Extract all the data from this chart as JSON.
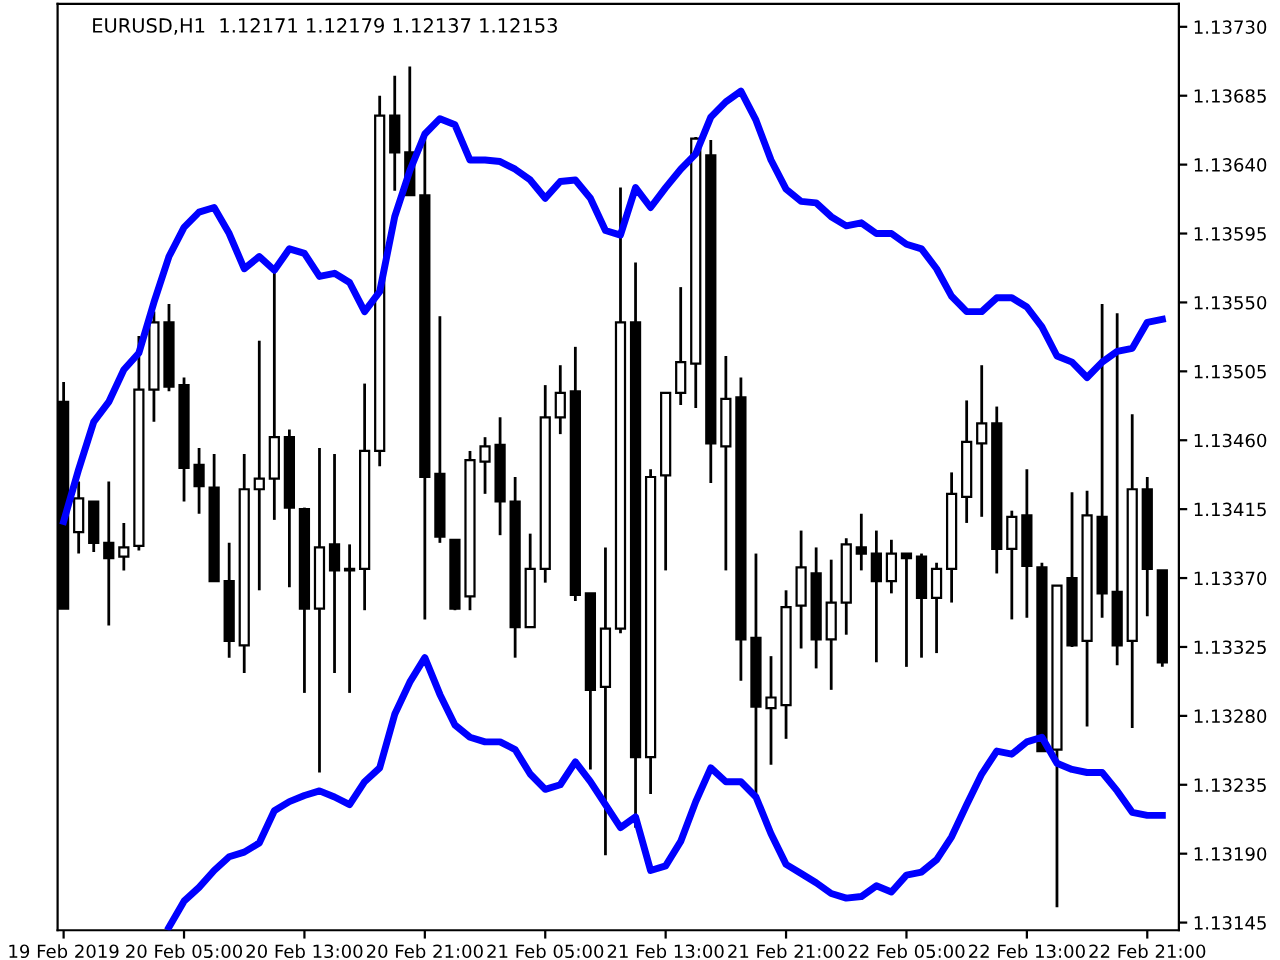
{
  "chart_data": {
    "type": "candlestick",
    "title": "EURUSD,H1  1.12171 1.12179 1.12137 1.12153",
    "categories": [
      "19 Feb 2019",
      null,
      null,
      null,
      null,
      null,
      null,
      null,
      "20 Feb 05:00",
      null,
      null,
      null,
      null,
      null,
      null,
      null,
      "20 Feb 13:00",
      null,
      null,
      null,
      null,
      null,
      null,
      null,
      "20 Feb 21:00",
      null,
      null,
      null,
      null,
      null,
      null,
      null,
      "21 Feb 05:00",
      null,
      null,
      null,
      null,
      null,
      null,
      null,
      "21 Feb 13:00",
      null,
      null,
      null,
      null,
      null,
      null,
      null,
      "21 Feb 21:00",
      null,
      null,
      null,
      null,
      null,
      null,
      null,
      "22 Feb 05:00",
      null,
      null,
      null,
      null,
      null,
      null,
      null,
      "22 Feb 13:00",
      null,
      null,
      null,
      null,
      null,
      null,
      null,
      "22 Feb 21:00",
      null
    ],
    "ohlc": [
      [
        1.13485,
        1.13498,
        1.1335,
        1.1335
      ],
      [
        1.134,
        1.13433,
        1.13386,
        1.13422
      ],
      [
        1.1342,
        1.1342,
        1.13387,
        1.13393
      ],
      [
        1.13393,
        1.13433,
        1.13339,
        1.13383
      ],
      [
        1.13384,
        1.13406,
        1.13375,
        1.1339
      ],
      [
        1.13391,
        1.13528,
        1.13388,
        1.13493
      ],
      [
        1.13493,
        1.13544,
        1.13472,
        1.13537
      ],
      [
        1.13537,
        1.13549,
        1.13492,
        1.13495
      ],
      [
        1.13496,
        1.13501,
        1.1342,
        1.13442
      ],
      [
        1.13444,
        1.13455,
        1.13412,
        1.1343
      ],
      [
        1.13429,
        1.13451,
        1.13368,
        1.13368
      ],
      [
        1.13368,
        1.13393,
        1.13318,
        1.13329
      ],
      [
        1.13326,
        1.13451,
        1.13308,
        1.13428
      ],
      [
        1.13428,
        1.13525,
        1.13362,
        1.13435
      ],
      [
        1.13435,
        1.13571,
        1.13408,
        1.13462
      ],
      [
        1.13462,
        1.13467,
        1.13364,
        1.13416
      ],
      [
        1.13415,
        1.13416,
        1.13295,
        1.1335
      ],
      [
        1.1335,
        1.13455,
        1.13243,
        1.1339
      ],
      [
        1.13392,
        1.13451,
        1.13308,
        1.13375
      ],
      [
        1.13376,
        1.13392,
        1.13295,
        1.13375
      ],
      [
        1.13376,
        1.13497,
        1.13349,
        1.13453
      ],
      [
        1.13453,
        1.13685,
        1.13443,
        1.13672
      ],
      [
        1.13672,
        1.13698,
        1.13623,
        1.13648
      ],
      [
        1.13648,
        1.13704,
        1.1362,
        1.1362
      ],
      [
        1.1362,
        1.13658,
        1.13343,
        1.13436
      ],
      [
        1.13438,
        1.13541,
        1.13393,
        1.13397
      ],
      [
        1.13395,
        1.13395,
        1.13349,
        1.1335
      ],
      [
        1.13358,
        1.13453,
        1.13349,
        1.13447
      ],
      [
        1.13446,
        1.13462,
        1.13425,
        1.13456
      ],
      [
        1.13457,
        1.13475,
        1.13398,
        1.1342
      ],
      [
        1.1342,
        1.13436,
        1.13318,
        1.13338
      ],
      [
        1.13338,
        1.13399,
        1.13338,
        1.13376
      ],
      [
        1.13376,
        1.13496,
        1.13367,
        1.13475
      ],
      [
        1.13475,
        1.13509,
        1.13464,
        1.13491
      ],
      [
        1.13492,
        1.13521,
        1.13355,
        1.13359
      ],
      [
        1.1336,
        1.1336,
        1.13245,
        1.13297
      ],
      [
        1.13299,
        1.1339,
        1.13189,
        1.13337
      ],
      [
        1.13337,
        1.13625,
        1.13334,
        1.13537
      ],
      [
        1.13537,
        1.13576,
        1.13207,
        1.13253
      ],
      [
        1.13253,
        1.13441,
        1.13229,
        1.13436
      ],
      [
        1.13437,
        1.13491,
        1.13375,
        1.13491
      ],
      [
        1.13491,
        1.1356,
        1.13483,
        1.13511
      ],
      [
        1.1351,
        1.13658,
        1.13481,
        1.13657
      ],
      [
        1.13646,
        1.13656,
        1.13432,
        1.13458
      ],
      [
        1.13456,
        1.13515,
        1.13375,
        1.13487
      ],
      [
        1.13488,
        1.13501,
        1.13303,
        1.1333
      ],
      [
        1.13331,
        1.13386,
        1.13228,
        1.13286
      ],
      [
        1.13285,
        1.13319,
        1.13248,
        1.13292
      ],
      [
        1.13287,
        1.13362,
        1.13265,
        1.13351
      ],
      [
        1.13352,
        1.13401,
        1.13324,
        1.13377
      ],
      [
        1.13373,
        1.1339,
        1.13311,
        1.1333
      ],
      [
        1.1333,
        1.13382,
        1.13297,
        1.13354
      ],
      [
        1.13354,
        1.13396,
        1.13333,
        1.13392
      ],
      [
        1.1339,
        1.13412,
        1.13375,
        1.13386
      ],
      [
        1.13386,
        1.13401,
        1.13315,
        1.13368
      ],
      [
        1.13368,
        1.13395,
        1.1336,
        1.13386
      ],
      [
        1.13386,
        1.13386,
        1.13312,
        1.13383
      ],
      [
        1.13384,
        1.13386,
        1.13318,
        1.13357
      ],
      [
        1.13357,
        1.1338,
        1.13321,
        1.13376
      ],
      [
        1.13376,
        1.13439,
        1.13354,
        1.13425
      ],
      [
        1.13423,
        1.13486,
        1.13406,
        1.13459
      ],
      [
        1.13458,
        1.13509,
        1.1341,
        1.13471
      ],
      [
        1.13471,
        1.13482,
        1.13373,
        1.13389
      ],
      [
        1.13389,
        1.13414,
        1.13343,
        1.1341
      ],
      [
        1.13411,
        1.13441,
        1.13344,
        1.13378
      ],
      [
        1.13377,
        1.1338,
        1.13257,
        1.13257
      ],
      [
        1.13258,
        1.13365,
        1.13155,
        1.13365
      ],
      [
        1.1337,
        1.13426,
        1.13325,
        1.13326
      ],
      [
        1.13329,
        1.13427,
        1.13273,
        1.13411
      ],
      [
        1.1341,
        1.13549,
        1.13344,
        1.1336
      ],
      [
        1.13361,
        1.13543,
        1.13313,
        1.13326
      ],
      [
        1.13329,
        1.13477,
        1.13272,
        1.13428
      ],
      [
        1.13428,
        1.13436,
        1.13345,
        1.13376
      ],
      [
        1.13375,
        1.13375,
        1.13312,
        1.13315
      ]
    ],
    "series": [
      {
        "type": "line",
        "color": "#0000ff",
        "values": [
          1.13407,
          1.13441,
          1.13472,
          1.13485,
          1.13506,
          1.13517,
          1.1355,
          1.1358,
          1.13599,
          1.13609,
          1.13612,
          1.13595,
          1.13572,
          1.1358,
          1.13571,
          1.13585,
          1.13582,
          1.13567,
          1.13569,
          1.13563,
          1.13544,
          1.13557,
          1.13606,
          1.13636,
          1.1366,
          1.1367,
          1.13666,
          1.13643,
          1.13643,
          1.13642,
          1.13637,
          1.1363,
          1.13618,
          1.13629,
          1.1363,
          1.13618,
          1.13597,
          1.13594,
          1.13625,
          1.13612,
          1.13625,
          1.13637,
          1.13647,
          1.13671,
          1.13681,
          1.13688,
          1.13669,
          1.13643,
          1.13624,
          1.13616,
          1.13615,
          1.13606,
          1.136,
          1.13602,
          1.13595,
          1.13595,
          1.13588,
          1.13585,
          1.13572,
          1.13554,
          1.13544,
          1.13544,
          1.13553,
          1.13553,
          1.13547,
          1.13534,
          1.13515,
          1.13511,
          1.13501,
          1.13511,
          1.13518,
          1.1352,
          1.13537,
          1.13539
        ]
      },
      {
        "type": "line",
        "color": "#0000ff",
        "values": [
          null,
          null,
          null,
          null,
          null,
          null,
          null,
          1.13142,
          1.13159,
          1.13168,
          1.13179,
          1.13188,
          1.13191,
          1.13197,
          1.13218,
          1.13224,
          1.13228,
          1.13231,
          1.13227,
          1.13222,
          1.13237,
          1.13246,
          1.13281,
          1.13302,
          1.13318,
          1.13294,
          1.13274,
          1.13266,
          1.13263,
          1.13263,
          1.13258,
          1.13242,
          1.13232,
          1.13235,
          1.1325,
          1.13237,
          1.13222,
          1.13207,
          1.13214,
          1.13179,
          1.13182,
          1.13198,
          1.13224,
          1.13246,
          1.13237,
          1.13237,
          1.13227,
          1.13203,
          1.13183,
          1.13177,
          1.13171,
          1.13164,
          1.13161,
          1.13162,
          1.13169,
          1.13165,
          1.13176,
          1.13178,
          1.13186,
          1.13201,
          1.13222,
          1.13242,
          1.13257,
          1.13255,
          1.13263,
          1.13266,
          1.13249,
          1.13245,
          1.13243,
          1.13243,
          1.13231,
          1.13217,
          1.13215,
          1.13215
        ]
      }
    ],
    "ylim": [
      1.1314,
      1.13745
    ],
    "yticks": [
      {
        "value": 1.13145,
        "label": "1.13145"
      },
      {
        "value": 1.1319,
        "label": "1.13190"
      },
      {
        "value": 1.13235,
        "label": "1.13235"
      },
      {
        "value": 1.1328,
        "label": "1.13280"
      },
      {
        "value": 1.13325,
        "label": "1.13325"
      },
      {
        "value": 1.1337,
        "label": "1.13370"
      },
      {
        "value": 1.13415,
        "label": "1.13415"
      },
      {
        "value": 1.1346,
        "label": "1.13460"
      },
      {
        "value": 1.13505,
        "label": "1.13505"
      },
      {
        "value": 1.1355,
        "label": "1.13550"
      },
      {
        "value": 1.13595,
        "label": "1.13595"
      },
      {
        "value": 1.1364,
        "label": "1.13640"
      },
      {
        "value": 1.13685,
        "label": "1.13685"
      },
      {
        "value": 1.1373,
        "label": "1.13730"
      }
    ],
    "grid": false
  }
}
